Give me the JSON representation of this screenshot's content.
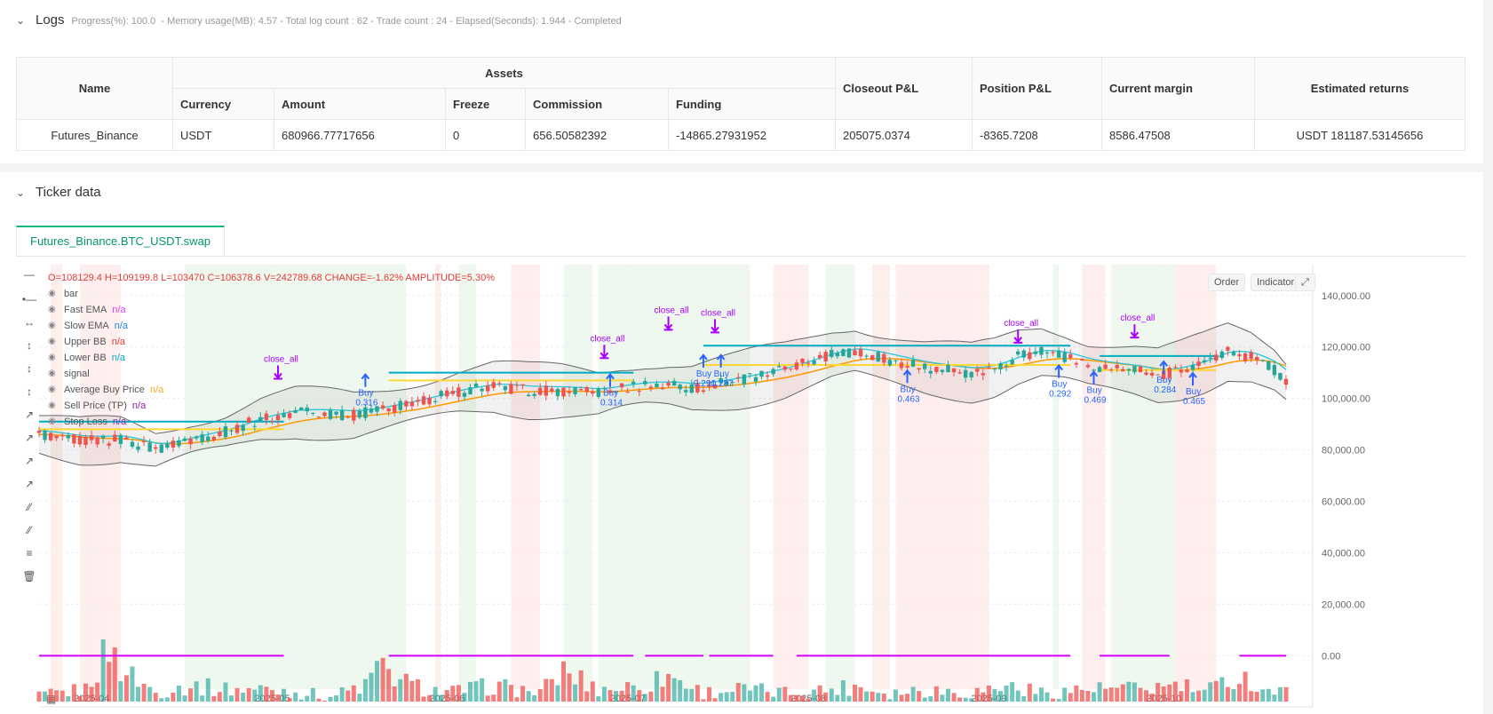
{
  "logs": {
    "title": "Logs",
    "status": "Progress(%): 100.0  - Memory usage(MB): 4.57 - Total log count : 62 - Trade count : 24 - Elapsed(Seconds): 1.944 - Completed",
    "headers": {
      "name": "Name",
      "assets": "Assets",
      "currency": "Currency",
      "amount": "Amount",
      "freeze": "Freeze",
      "commission": "Commission",
      "funding": "Funding",
      "closeout": "Closeout P&L",
      "position": "Position P&L",
      "margin": "Current margin",
      "returns": "Estimated returns"
    },
    "row": {
      "name": "Futures_Binance",
      "currency": "USDT",
      "amount": "680966.77717656",
      "freeze": "0",
      "commission": "656.50582392",
      "funding": "-14865.27931952",
      "closeout": "205075.0374",
      "position": "-8365.7208",
      "margin": "8586.47508",
      "returns": "USDT 181187.53145656"
    }
  },
  "ticker": {
    "title": "Ticker data",
    "tab": "Futures_Binance.BTC_USDT.swap",
    "buttons": {
      "order": "Order",
      "indicator": "Indicator"
    },
    "ohlc": "O=108129.4 H=109199.8 L=103470 C=106378.6 V=242789.68 CHANGE=-1.62% AMPLITUDE=5.30%",
    "legend": [
      {
        "label": "bar",
        "value": ""
      },
      {
        "label": "Fast EMA",
        "value": "n/a",
        "color": "#e040fb"
      },
      {
        "label": "Slow EMA",
        "value": "n/a",
        "color": "#1e88e5"
      },
      {
        "label": "Upper BB",
        "value": "n/a",
        "color": "#e53935"
      },
      {
        "label": "Lower BB",
        "value": "n/a",
        "color": "#00acc1"
      },
      {
        "label": "signal",
        "value": ""
      },
      {
        "label": "Average Buy Price",
        "value": "n/a",
        "color": "#f9a825"
      },
      {
        "label": "Sell Price (TP)",
        "value": "n/a",
        "color": "#8e24aa"
      },
      {
        "label": "Stop Loss",
        "value": "n/a",
        "color": "#8e24aa"
      }
    ]
  },
  "chart_data": {
    "type": "candlestick",
    "x_tick_labels": [
      "2025-04",
      "2025-05",
      "2025-06",
      "2025-07",
      "2025-08",
      "2025-09",
      "2025-10"
    ],
    "y_tick_labels": [
      "140,000.00",
      "120,000.00",
      "100,000.00",
      "80,000.00",
      "60,000.00",
      "40,000.00",
      "20,000.00",
      "0.00"
    ],
    "y_ticks": [
      140000,
      120000,
      100000,
      80000,
      60000,
      40000,
      20000,
      0
    ],
    "ylim": [
      -13000,
      152000
    ],
    "x_range_days": [
      0,
      214
    ],
    "price_path": [
      [
        0,
        86000
      ],
      [
        7,
        83500
      ],
      [
        14,
        84000
      ],
      [
        20,
        80000
      ],
      [
        26,
        84000
      ],
      [
        32,
        87000
      ],
      [
        38,
        92000
      ],
      [
        44,
        94500
      ],
      [
        50,
        94000
      ],
      [
        54,
        93500
      ],
      [
        60,
        96000
      ],
      [
        66,
        99000
      ],
      [
        72,
        102500
      ],
      [
        78,
        104500
      ],
      [
        84,
        103000
      ],
      [
        90,
        103000
      ],
      [
        96,
        102000
      ],
      [
        100,
        104000
      ],
      [
        104,
        105000
      ],
      [
        108,
        105000
      ],
      [
        112,
        104000
      ],
      [
        116,
        105500
      ],
      [
        120,
        107000
      ],
      [
        124,
        109000
      ],
      [
        128,
        111000
      ],
      [
        132,
        114000
      ],
      [
        136,
        117000
      ],
      [
        140,
        118500
      ],
      [
        144,
        116000
      ],
      [
        148,
        114000
      ],
      [
        152,
        112000
      ],
      [
        156,
        111000
      ],
      [
        160,
        110000
      ],
      [
        164,
        112000
      ],
      [
        168,
        116000
      ],
      [
        172,
        118000
      ],
      [
        176,
        116000
      ],
      [
        180,
        113000
      ],
      [
        184,
        112000
      ],
      [
        188,
        111000
      ],
      [
        192,
        109000
      ],
      [
        196,
        111000
      ],
      [
        200,
        114000
      ],
      [
        204,
        118000
      ],
      [
        208,
        116000
      ],
      [
        212,
        111000
      ],
      [
        214,
        106400
      ]
    ],
    "volume_path": [
      [
        0,
        0.2
      ],
      [
        8,
        0.3
      ],
      [
        12,
        0.9
      ],
      [
        14,
        0.6
      ],
      [
        20,
        0.25
      ],
      [
        26,
        0.35
      ],
      [
        32,
        0.3
      ],
      [
        40,
        0.3
      ],
      [
        50,
        0.2
      ],
      [
        56,
        0.35
      ],
      [
        58,
        0.6
      ],
      [
        64,
        0.35
      ],
      [
        70,
        0.25
      ],
      [
        78,
        0.35
      ],
      [
        86,
        0.25
      ],
      [
        90,
        0.55
      ],
      [
        96,
        0.3
      ],
      [
        104,
        0.35
      ],
      [
        108,
        0.5
      ],
      [
        114,
        0.25
      ],
      [
        120,
        0.3
      ],
      [
        128,
        0.25
      ],
      [
        136,
        0.3
      ],
      [
        140,
        0.35
      ],
      [
        146,
        0.25
      ],
      [
        152,
        0.3
      ],
      [
        160,
        0.25
      ],
      [
        166,
        0.35
      ],
      [
        172,
        0.25
      ],
      [
        180,
        0.3
      ],
      [
        188,
        0.3
      ],
      [
        196,
        0.35
      ],
      [
        200,
        0.25
      ],
      [
        206,
        0.5
      ],
      [
        210,
        0.3
      ],
      [
        214,
        0.25
      ]
    ],
    "signal_segments": [
      [
        0,
        42
      ],
      [
        60,
        102
      ],
      [
        104,
        114
      ],
      [
        115,
        126
      ],
      [
        130,
        177
      ],
      [
        182,
        194
      ],
      [
        206,
        214
      ]
    ],
    "trend_bands": [
      {
        "start": 2,
        "end": 4,
        "side": "bear"
      },
      {
        "start": 7,
        "end": 14,
        "side": "bear"
      },
      {
        "start": 25,
        "end": 63,
        "side": "bull"
      },
      {
        "start": 68,
        "end": 69,
        "side": "bear"
      },
      {
        "start": 72,
        "end": 75,
        "side": "bull"
      },
      {
        "start": 81,
        "end": 86,
        "side": "bear"
      },
      {
        "start": 90,
        "end": 95,
        "side": "bull"
      },
      {
        "start": 96,
        "end": 122,
        "side": "bull"
      },
      {
        "start": 126,
        "end": 132,
        "side": "bear"
      },
      {
        "start": 135,
        "end": 140,
        "side": "bull"
      },
      {
        "start": 143,
        "end": 146,
        "side": "bear"
      },
      {
        "start": 147,
        "end": 163,
        "side": "bear"
      },
      {
        "start": 174,
        "end": 175,
        "side": "bull"
      },
      {
        "start": 179,
        "end": 183,
        "side": "bear"
      },
      {
        "start": 184,
        "end": 195,
        "side": "bull"
      },
      {
        "start": 195,
        "end": 202,
        "side": "bear"
      }
    ],
    "markers": [
      {
        "type": "close",
        "label": "close_all",
        "day": 41,
        "price": 108000
      },
      {
        "type": "buy",
        "label": "Buy",
        "value": "0.316",
        "day": 56,
        "price": 104500
      },
      {
        "type": "close",
        "label": "close_all",
        "day": 97,
        "price": 116000
      },
      {
        "type": "buy",
        "label": "Buy",
        "value": "0.314",
        "day": 98,
        "price": 104500
      },
      {
        "type": "close",
        "label": "close_all",
        "day": 108,
        "price": 127000
      },
      {
        "type": "buy",
        "label": "Buy",
        "value": "0.291",
        "day": 114,
        "price": 112000
      },
      {
        "type": "close",
        "label": "close_all",
        "day": 116,
        "price": 126000
      },
      {
        "type": "buy",
        "label": "Buy",
        "value": "0.287",
        "day": 117,
        "price": 112000
      },
      {
        "type": "buy",
        "label": "Buy",
        "value": "0.463",
        "day": 149,
        "price": 106000
      },
      {
        "type": "close",
        "label": "close_all",
        "day": 168,
        "price": 122000
      },
      {
        "type": "buy",
        "label": "Buy",
        "value": "0.292",
        "day": 175,
        "price": 108000
      },
      {
        "type": "buy",
        "label": "Buy",
        "value": "0.469",
        "day": 181,
        "price": 105500
      },
      {
        "type": "close",
        "label": "close_all",
        "day": 188,
        "price": 124000
      },
      {
        "type": "buy",
        "label": "Buy",
        "value": "0.284",
        "day": 193,
        "price": 109500
      },
      {
        "type": "buy",
        "label": "Buy",
        "value": "0.465",
        "day": 198,
        "price": 105000
      }
    ]
  }
}
